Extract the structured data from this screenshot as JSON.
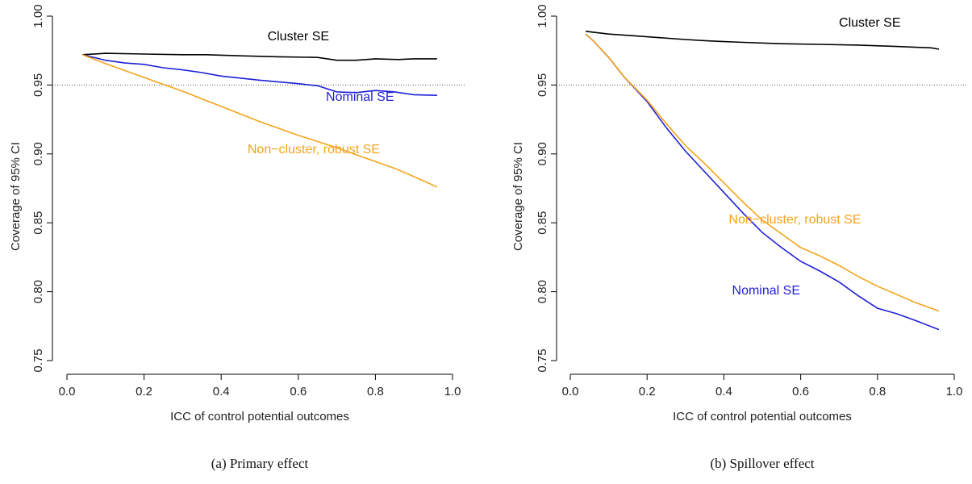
{
  "chart_data": [
    {
      "type": "line",
      "caption": "(a) Primary effect",
      "xlabel": "ICC of control potential outcomes",
      "ylabel": "Coverage of 95% CI",
      "xlim": [
        0.0,
        1.0
      ],
      "ylim": [
        0.75,
        1.0
      ],
      "xticks": [
        "0.0",
        "0.2",
        "0.4",
        "0.6",
        "0.8",
        "1.0"
      ],
      "yticks": [
        "0.75",
        "0.80",
        "0.85",
        "0.90",
        "0.95",
        "1.00"
      ],
      "reference_line": 0.95,
      "series": [
        {
          "name": "Cluster SE",
          "color": "#000000",
          "label_pos": [
            0.6,
            0.9825
          ],
          "x": [
            0.04,
            0.1,
            0.2,
            0.3,
            0.36,
            0.45,
            0.55,
            0.65,
            0.7,
            0.75,
            0.8,
            0.86,
            0.9,
            0.96
          ],
          "y": [
            0.972,
            0.973,
            0.9725,
            0.972,
            0.972,
            0.9712,
            0.9705,
            0.97,
            0.968,
            0.968,
            0.969,
            0.9685,
            0.969,
            0.969
          ]
        },
        {
          "name": "Nominal SE",
          "color": "#1f1fd6",
          "label_pos": [
            0.76,
            0.9385
          ],
          "x": [
            0.04,
            0.1,
            0.15,
            0.2,
            0.25,
            0.3,
            0.35,
            0.4,
            0.5,
            0.6,
            0.65,
            0.7,
            0.75,
            0.8,
            0.85,
            0.9,
            0.96
          ],
          "y": [
            0.972,
            0.968,
            0.966,
            0.965,
            0.9625,
            0.961,
            0.959,
            0.9565,
            0.9535,
            0.951,
            0.9495,
            0.945,
            0.9445,
            0.946,
            0.945,
            0.943,
            0.9425
          ]
        },
        {
          "name": "Non−cluster, robust SE",
          "color": "#f5a31a",
          "label_pos": [
            0.64,
            0.9005
          ],
          "x": [
            0.04,
            0.1,
            0.2,
            0.3,
            0.4,
            0.5,
            0.6,
            0.7,
            0.75,
            0.8,
            0.85,
            0.9,
            0.96
          ],
          "y": [
            0.972,
            0.9655,
            0.9555,
            0.9455,
            0.9345,
            0.9235,
            0.9135,
            0.9045,
            0.8995,
            0.8945,
            0.8895,
            0.8835,
            0.876
          ]
        }
      ]
    },
    {
      "type": "line",
      "caption": "(b) Spillover effect",
      "xlabel": "ICC of control potential outcomes",
      "ylabel": "Coverage of 95% CI",
      "xlim": [
        0.0,
        1.0
      ],
      "ylim": [
        0.75,
        1.0
      ],
      "xticks": [
        "0.0",
        "0.2",
        "0.4",
        "0.6",
        "0.8",
        "1.0"
      ],
      "yticks": [
        "0.75",
        "0.80",
        "0.85",
        "0.90",
        "0.95",
        "1.00"
      ],
      "reference_line": 0.95,
      "series": [
        {
          "name": "Cluster SE",
          "color": "#000000",
          "label_pos": [
            0.78,
            0.9925
          ],
          "x": [
            0.04,
            0.1,
            0.2,
            0.3,
            0.36,
            0.45,
            0.55,
            0.65,
            0.75,
            0.85,
            0.94,
            0.96
          ],
          "y": [
            0.989,
            0.987,
            0.985,
            0.983,
            0.982,
            0.981,
            0.98,
            0.9795,
            0.979,
            0.978,
            0.977,
            0.976
          ]
        },
        {
          "name": "Nominal SE",
          "color": "#1f1fd6",
          "label_pos": [
            0.51,
            0.798
          ],
          "x": [
            0.04,
            0.06,
            0.1,
            0.14,
            0.2,
            0.25,
            0.3,
            0.35,
            0.4,
            0.45,
            0.5,
            0.55,
            0.6,
            0.65,
            0.7,
            0.75,
            0.8,
            0.85,
            0.9,
            0.96
          ],
          "y": [
            0.987,
            0.982,
            0.97,
            0.956,
            0.938,
            0.919,
            0.902,
            0.887,
            0.872,
            0.857,
            0.843,
            0.832,
            0.822,
            0.815,
            0.807,
            0.797,
            0.788,
            0.784,
            0.779,
            0.7725
          ]
        },
        {
          "name": "Non−cluster, robust SE",
          "color": "#f5a31a",
          "label_pos": [
            0.585,
            0.8495
          ],
          "x": [
            0.04,
            0.06,
            0.1,
            0.14,
            0.2,
            0.25,
            0.3,
            0.35,
            0.4,
            0.45,
            0.5,
            0.55,
            0.6,
            0.65,
            0.7,
            0.75,
            0.8,
            0.85,
            0.9,
            0.96
          ],
          "y": [
            0.987,
            0.982,
            0.97,
            0.956,
            0.939,
            0.922,
            0.906,
            0.893,
            0.879,
            0.865,
            0.852,
            0.842,
            0.832,
            0.826,
            0.819,
            0.811,
            0.804,
            0.798,
            0.792,
            0.786
          ]
        }
      ]
    }
  ]
}
